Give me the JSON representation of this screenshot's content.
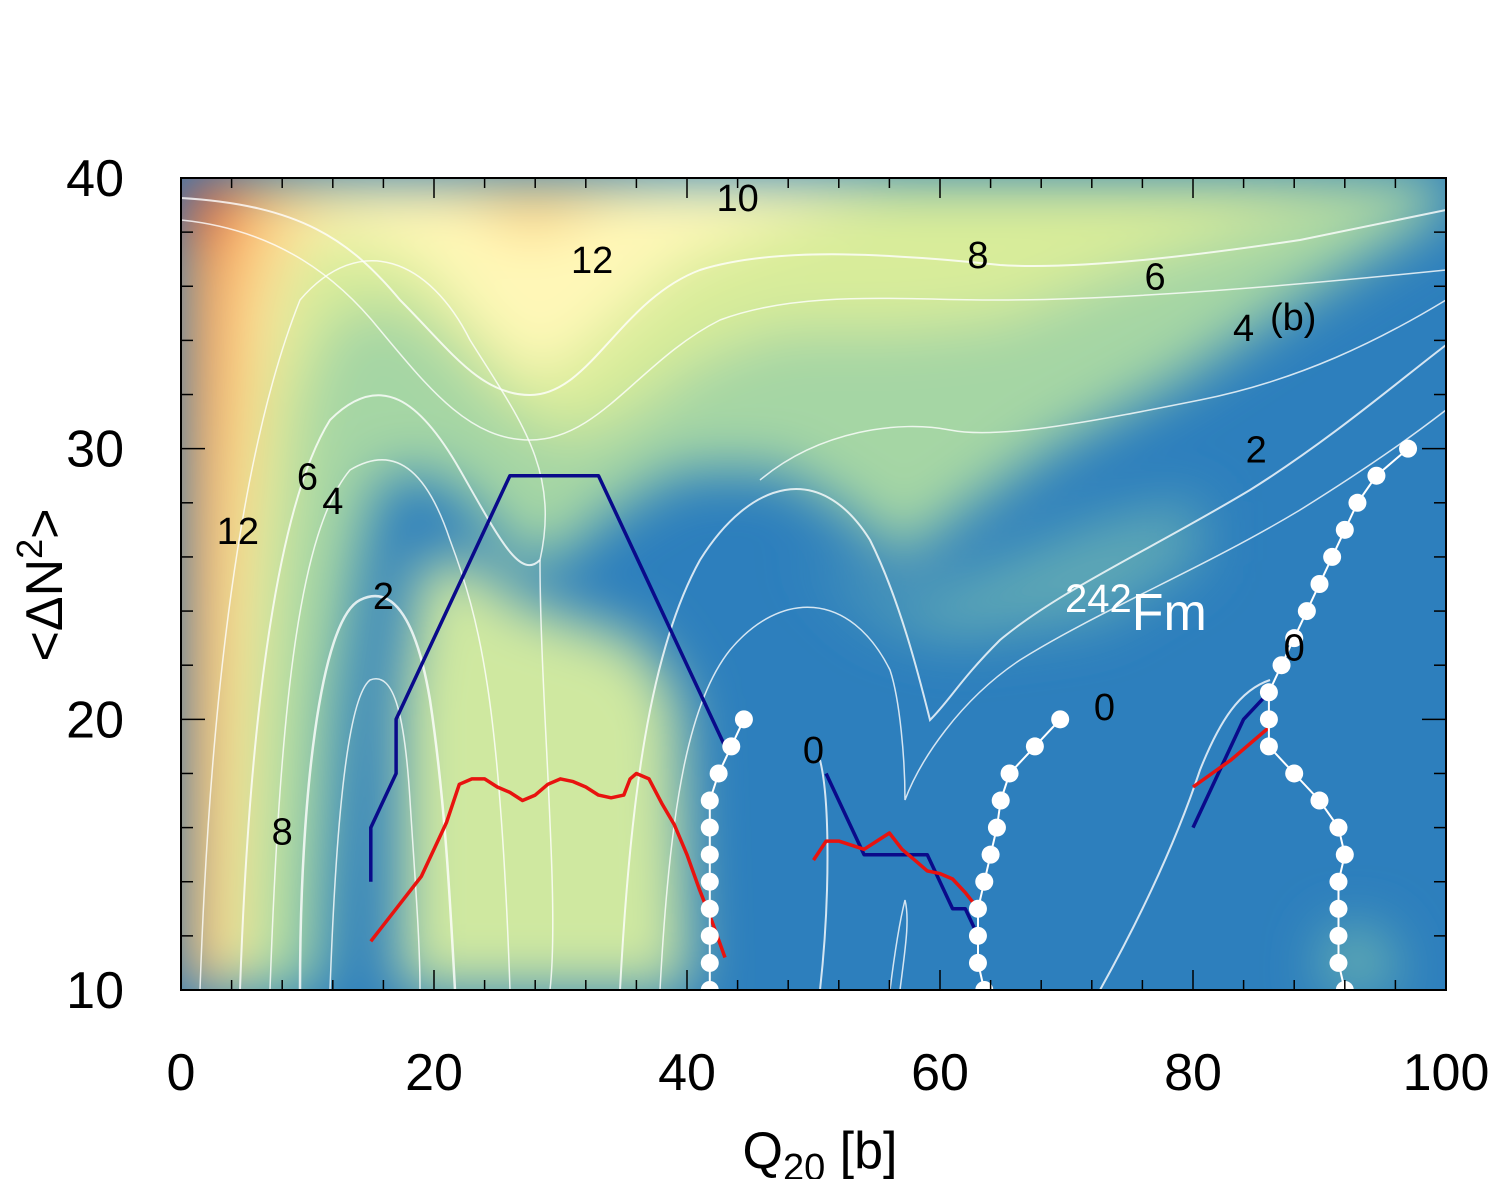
{
  "chart_data": {
    "type": "heatmap",
    "panel_label": "(b)",
    "nucleus": {
      "mass_number": "242",
      "symbol": "Fm"
    },
    "xlabel": {
      "main": "Q",
      "sub": "20",
      "unit": " [b]"
    },
    "ylabel": {
      "pre": "<ΔN",
      "sup": "2",
      "post": ">"
    },
    "xlim": [
      0,
      100
    ],
    "ylim": [
      10,
      40
    ],
    "x_ticks": [
      0,
      20,
      40,
      60,
      80,
      100
    ],
    "y_ticks": [
      10,
      20,
      30,
      40
    ],
    "x_minor_step": 4,
    "y_minor_step": 2,
    "colormap": [
      "#2d7fbd",
      "#57a7b8",
      "#a5d6a4",
      "#ffffbd",
      "#fdba6a",
      "#e34a33"
    ],
    "contour_level_labels": [
      {
        "text": "10",
        "x": 44,
        "y": 39.3
      },
      {
        "text": "12",
        "x": 32.5,
        "y": 37.0
      },
      {
        "text": "8",
        "x": 63,
        "y": 37.2
      },
      {
        "text": "6",
        "x": 77,
        "y": 36.4
      },
      {
        "text": "4",
        "x": 84,
        "y": 34.5
      },
      {
        "text": "2",
        "x": 85,
        "y": 30.0
      },
      {
        "text": "12",
        "x": 4.5,
        "y": 27.0
      },
      {
        "text": "6",
        "x": 10,
        "y": 29.0
      },
      {
        "text": "4",
        "x": 12,
        "y": 28.1
      },
      {
        "text": "2",
        "x": 16,
        "y": 24.6
      },
      {
        "text": "8",
        "x": 8,
        "y": 15.9
      },
      {
        "text": "0",
        "x": 50,
        "y": 18.9
      },
      {
        "text": "0",
        "x": 73,
        "y": 20.5
      },
      {
        "text": "0",
        "x": 88,
        "y": 22.7
      }
    ],
    "series": [
      {
        "name": "blue",
        "color": "#0a0a8a",
        "segments": [
          [
            [
              15,
              14
            ],
            [
              15,
              16
            ],
            [
              17,
              18
            ],
            [
              17,
              20
            ],
            [
              26,
              29
            ],
            [
              33,
              29
            ],
            [
              43,
              19
            ]
          ],
          [
            [
              51,
              18
            ],
            [
              54,
              15
            ],
            [
              59,
              15
            ],
            [
              61,
              13
            ],
            [
              62,
              13
            ],
            [
              63,
              12
            ]
          ],
          [
            [
              80,
              16
            ],
            [
              84,
              20
            ],
            [
              86,
              21
            ]
          ]
        ]
      },
      {
        "name": "red",
        "color": "#e8130f",
        "segments": [
          [
            [
              15,
              11.8
            ],
            [
              17,
              13.0
            ],
            [
              19,
              14.2
            ],
            [
              21,
              16.2
            ],
            [
              22,
              17.6
            ],
            [
              23,
              17.8
            ],
            [
              24,
              17.8
            ],
            [
              25,
              17.5
            ],
            [
              26,
              17.3
            ],
            [
              27,
              17.0
            ],
            [
              28,
              17.2
            ],
            [
              29,
              17.6
            ],
            [
              30,
              17.8
            ],
            [
              31,
              17.7
            ],
            [
              32,
              17.5
            ],
            [
              33,
              17.2
            ],
            [
              34,
              17.1
            ],
            [
              35,
              17.2
            ],
            [
              35.5,
              17.8
            ],
            [
              36,
              18.0
            ],
            [
              37,
              17.8
            ],
            [
              38,
              16.9
            ],
            [
              39,
              16.1
            ],
            [
              40,
              15.0
            ],
            [
              41,
              13.7
            ],
            [
              42,
              12.5
            ],
            [
              43,
              11.2
            ]
          ],
          [
            [
              50,
              14.8
            ],
            [
              51,
              15.5
            ],
            [
              52,
              15.5
            ],
            [
              54,
              15.2
            ],
            [
              55,
              15.5
            ],
            [
              56,
              15.8
            ],
            [
              57,
              15.2
            ],
            [
              58,
              14.8
            ],
            [
              59,
              14.4
            ],
            [
              60,
              14.3
            ],
            [
              61,
              14.1
            ],
            [
              62,
              13.6
            ],
            [
              63,
              13.0
            ]
          ],
          [
            [
              80,
              17.5
            ],
            [
              83,
              18.5
            ],
            [
              86,
              19.7
            ]
          ]
        ]
      },
      {
        "name": "white-dots",
        "color": "#ffffff",
        "segments": [
          [
            [
              41.8,
              10
            ],
            [
              41.8,
              11
            ],
            [
              41.8,
              12
            ],
            [
              41.8,
              13
            ],
            [
              41.8,
              14
            ],
            [
              41.8,
              15
            ],
            [
              41.8,
              16
            ],
            [
              41.8,
              17
            ],
            [
              42.5,
              18
            ],
            [
              43.5,
              19
            ],
            [
              44.5,
              20
            ]
          ],
          [
            [
              63.5,
              10
            ],
            [
              63.0,
              11
            ],
            [
              63.0,
              12
            ],
            [
              63.0,
              13
            ],
            [
              63.5,
              14
            ],
            [
              64.0,
              15
            ],
            [
              64.5,
              16
            ],
            [
              64.8,
              17
            ],
            [
              65.5,
              18
            ],
            [
              67.5,
              19
            ],
            [
              69.5,
              20
            ]
          ],
          [
            [
              92,
              10
            ],
            [
              91.5,
              11
            ],
            [
              91.5,
              12
            ],
            [
              91.5,
              13
            ],
            [
              91.5,
              14
            ],
            [
              92,
              15
            ],
            [
              91.5,
              16
            ],
            [
              90,
              17
            ],
            [
              88,
              18
            ],
            [
              86,
              19
            ],
            [
              86,
              20
            ],
            [
              86,
              21
            ],
            [
              87,
              22
            ],
            [
              88,
              23
            ],
            [
              89,
              24
            ],
            [
              90,
              25
            ],
            [
              91,
              26
            ],
            [
              92,
              27
            ],
            [
              93,
              28
            ],
            [
              94.5,
              29
            ],
            [
              97,
              30
            ]
          ]
        ]
      }
    ]
  }
}
